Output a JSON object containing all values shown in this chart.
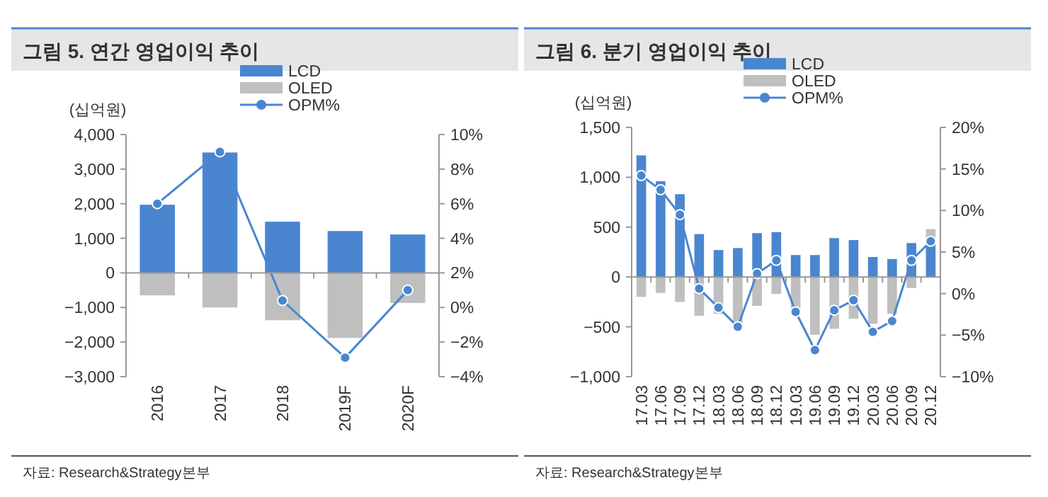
{
  "chart_data": [
    {
      "type": "bar",
      "title": "그림 5.  연간 영업이익 추이",
      "ylabel": "(십억원)",
      "categories": [
        "2016",
        "2017",
        "2018",
        "2019F",
        "2020F"
      ],
      "series": [
        {
          "name": "LCD",
          "color": "#4a86d0",
          "values": [
            1970,
            3480,
            1480,
            1210,
            1110
          ]
        },
        {
          "name": "OLED",
          "color": "#bfbfbf",
          "values": [
            -650,
            -1000,
            -1370,
            -1880,
            -870
          ]
        },
        {
          "name": "OPM%",
          "type": "line",
          "axis": "y2",
          "marker": "circle",
          "color": "#4a86d0",
          "values": [
            6.0,
            9.0,
            0.4,
            -2.9,
            1.0
          ]
        }
      ],
      "ylim": [
        -3000,
        4000
      ],
      "yticks": [
        {
          "value": 4000,
          "label": "4,000"
        },
        {
          "value": 3000,
          "label": "3,000"
        },
        {
          "value": 2000,
          "label": "2,000"
        },
        {
          "value": 1000,
          "label": "1,000"
        },
        {
          "value": 0,
          "label": "0"
        },
        {
          "value": -1000,
          "label": "−1,000"
        },
        {
          "value": -2000,
          "label": "−2,000"
        },
        {
          "value": -3000,
          "label": "−3,000"
        }
      ],
      "y2lim": [
        -4,
        10
      ],
      "y2ticks": [
        {
          "value": 10,
          "label": "10%"
        },
        {
          "value": 8,
          "label": "8%"
        },
        {
          "value": 6,
          "label": "6%"
        },
        {
          "value": 4,
          "label": "4%"
        },
        {
          "value": 2,
          "label": "2%"
        },
        {
          "value": 0,
          "label": "0%"
        },
        {
          "value": -2,
          "label": "−2%"
        },
        {
          "value": -4,
          "label": "−4%"
        }
      ],
      "stacked": true,
      "legend": "top",
      "annotations": [
        "자료: Research&Strategy본부"
      ]
    },
    {
      "type": "bar",
      "title": "그림 6.  분기 영업이익 추이",
      "ylabel": "(십억원)",
      "categories": [
        "17.03",
        "17.06",
        "17.09",
        "17.12",
        "18.03",
        "18.06",
        "18.09",
        "18.12",
        "19.03",
        "19.06",
        "19.09",
        "19.12",
        "20.03",
        "20.06",
        "20.09",
        "20.12"
      ],
      "series": [
        {
          "name": "LCD",
          "color": "#4a86d0",
          "values": [
            1220,
            960,
            830,
            430,
            270,
            290,
            440,
            450,
            220,
            220,
            390,
            370,
            200,
            180,
            340,
            380
          ]
        },
        {
          "name": "OLED",
          "color": "#bfbfbf",
          "values": [
            -200,
            -160,
            -250,
            -390,
            -370,
            -520,
            -290,
            -170,
            -370,
            -580,
            -520,
            -420,
            -470,
            -370,
            -110,
            100
          ]
        },
        {
          "name": "OPM%",
          "type": "line",
          "axis": "y2",
          "marker": "circle",
          "color": "#4a86d0",
          "values": [
            14.2,
            12.5,
            9.5,
            0.6,
            -1.7,
            -4.0,
            2.4,
            4.0,
            -2.2,
            -6.8,
            -2.0,
            -0.8,
            -4.6,
            -3.3,
            4.0,
            6.3
          ]
        }
      ],
      "ylim": [
        -1000,
        1500
      ],
      "yticks": [
        {
          "value": 1500,
          "label": "1,500"
        },
        {
          "value": 1000,
          "label": "1,000"
        },
        {
          "value": 500,
          "label": "500"
        },
        {
          "value": 0,
          "label": "0"
        },
        {
          "value": -500,
          "label": "−500"
        },
        {
          "value": -1000,
          "label": "−1,000"
        }
      ],
      "y2lim": [
        -10,
        20
      ],
      "y2ticks": [
        {
          "value": 20,
          "label": "20%"
        },
        {
          "value": 15,
          "label": "15%"
        },
        {
          "value": 10,
          "label": "10%"
        },
        {
          "value": 5,
          "label": "5%"
        },
        {
          "value": 0,
          "label": "0%"
        },
        {
          "value": -5,
          "label": "−5%"
        },
        {
          "value": -10,
          "label": "−10%"
        }
      ],
      "stacked": true,
      "legend": "top",
      "annotations": [
        "자료: Research&Strategy본부"
      ]
    }
  ]
}
